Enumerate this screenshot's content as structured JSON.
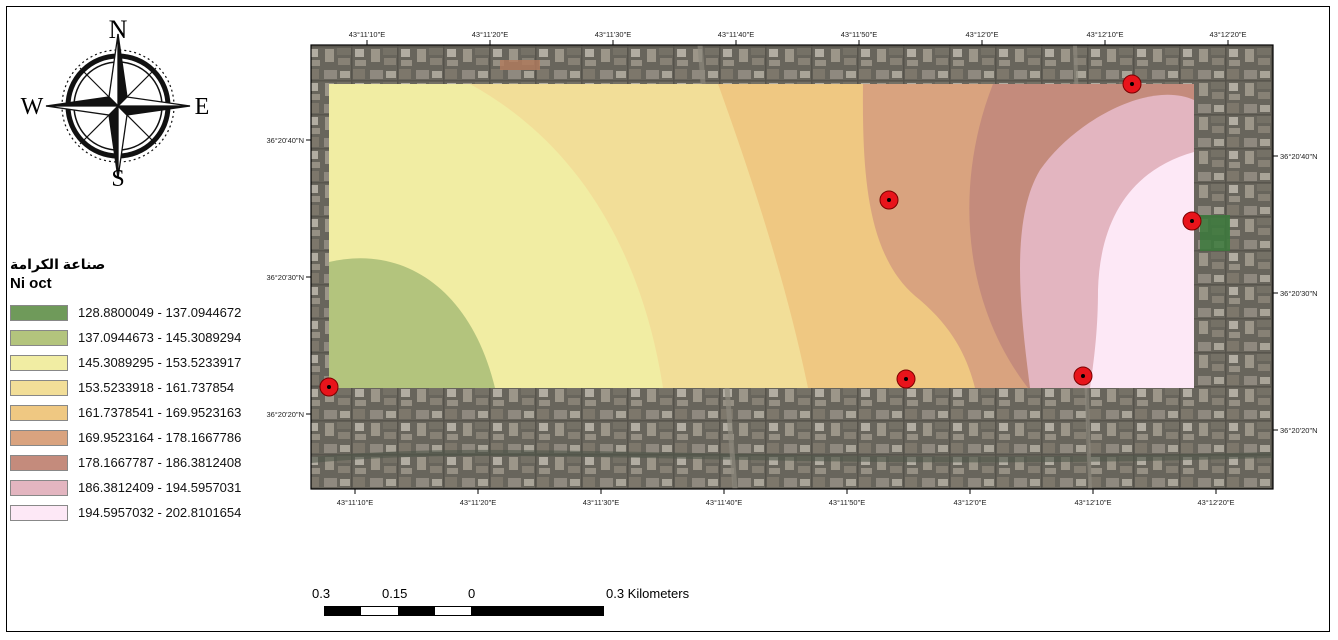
{
  "north_arrow": {
    "n": "N",
    "s": "S",
    "e": "E",
    "w": "W"
  },
  "legend": {
    "title": "صناعة الكرامة",
    "subtitle": "Ni oct",
    "classes": [
      {
        "label": "128.8800049 - 137.0944672",
        "color": "#6f9a5a"
      },
      {
        "label": "137.0944673 - 145.3089294",
        "color": "#b3c47d"
      },
      {
        "label": "145.3089295 - 153.5233917",
        "color": "#f1eda3"
      },
      {
        "label": "153.5233918 - 161.737854",
        "color": "#f2de98"
      },
      {
        "label": "161.7378541 - 169.9523163",
        "color": "#efc882"
      },
      {
        "label": "169.9523164 - 178.1667786",
        "color": "#d9a37f"
      },
      {
        "label": "178.1667787 - 186.3812408",
        "color": "#c48b7c"
      },
      {
        "label": "186.3812409 - 194.5957031",
        "color": "#e3b5c0"
      },
      {
        "label": "194.5957032 - 202.8101654",
        "color": "#fde8f6"
      }
    ]
  },
  "map": {
    "top_ticks": [
      "43°11'10\"E",
      "43°11'20\"E",
      "43°11'30\"E",
      "43°11'40\"E",
      "43°11'50\"E",
      "43°12'0\"E",
      "43°12'10\"E",
      "43°12'20\"E"
    ],
    "bottom_ticks": [
      "43°11'10\"E",
      "43°11'20\"E",
      "43°11'30\"E",
      "43°11'40\"E",
      "43°11'50\"E",
      "43°12'0\"E",
      "43°12'10\"E",
      "43°12'20\"E"
    ],
    "left_ticks": [
      "36°20'40\"N",
      "36°20'30\"N",
      "36°20'20\"N"
    ],
    "right_ticks": [
      "36°20'40\"N",
      "36°20'30\"N",
      "36°20'20\"N"
    ],
    "sample_point_count": 6,
    "sample_point_color": "#e8141b"
  },
  "scale_bar": {
    "labels": [
      "0.3",
      "0.15",
      "0",
      "0.3 Kilometers"
    ]
  }
}
